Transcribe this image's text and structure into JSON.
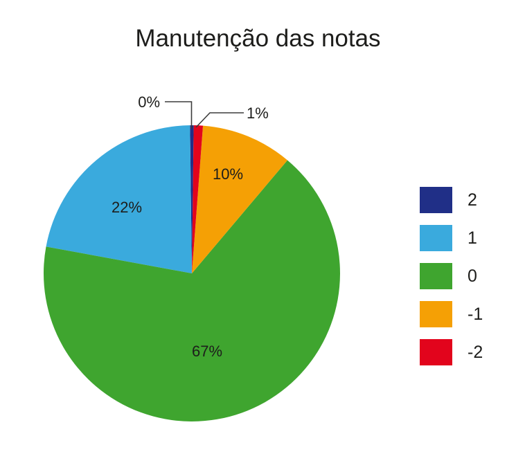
{
  "chart_data": {
    "type": "pie",
    "title": "Manutenção das notas",
    "legend_position": "right",
    "direction": "counterclockwise",
    "start_angle_deg": 90,
    "background": "#ffffff",
    "text_color": "#1d1d1b",
    "leader_line_color": "#3c3c3b",
    "slices": [
      {
        "name": "2",
        "label": "0%",
        "value": 0,
        "render_value": 0.4,
        "color": "#202f87",
        "label_placement": "callout"
      },
      {
        "name": "1",
        "label": "22%",
        "value": 22,
        "render_value": 22,
        "color": "#3aaadd",
        "label_placement": "inside"
      },
      {
        "name": "0",
        "label": "67%",
        "value": 67,
        "render_value": 67,
        "color": "#3fa52f",
        "label_placement": "inside"
      },
      {
        "name": "-1",
        "label": "10%",
        "value": 10,
        "render_value": 10,
        "color": "#f5a005",
        "label_placement": "inside"
      },
      {
        "name": "-2",
        "label": "1%",
        "value": 1,
        "render_value": 1,
        "color": "#e2041c",
        "label_placement": "callout"
      }
    ]
  }
}
